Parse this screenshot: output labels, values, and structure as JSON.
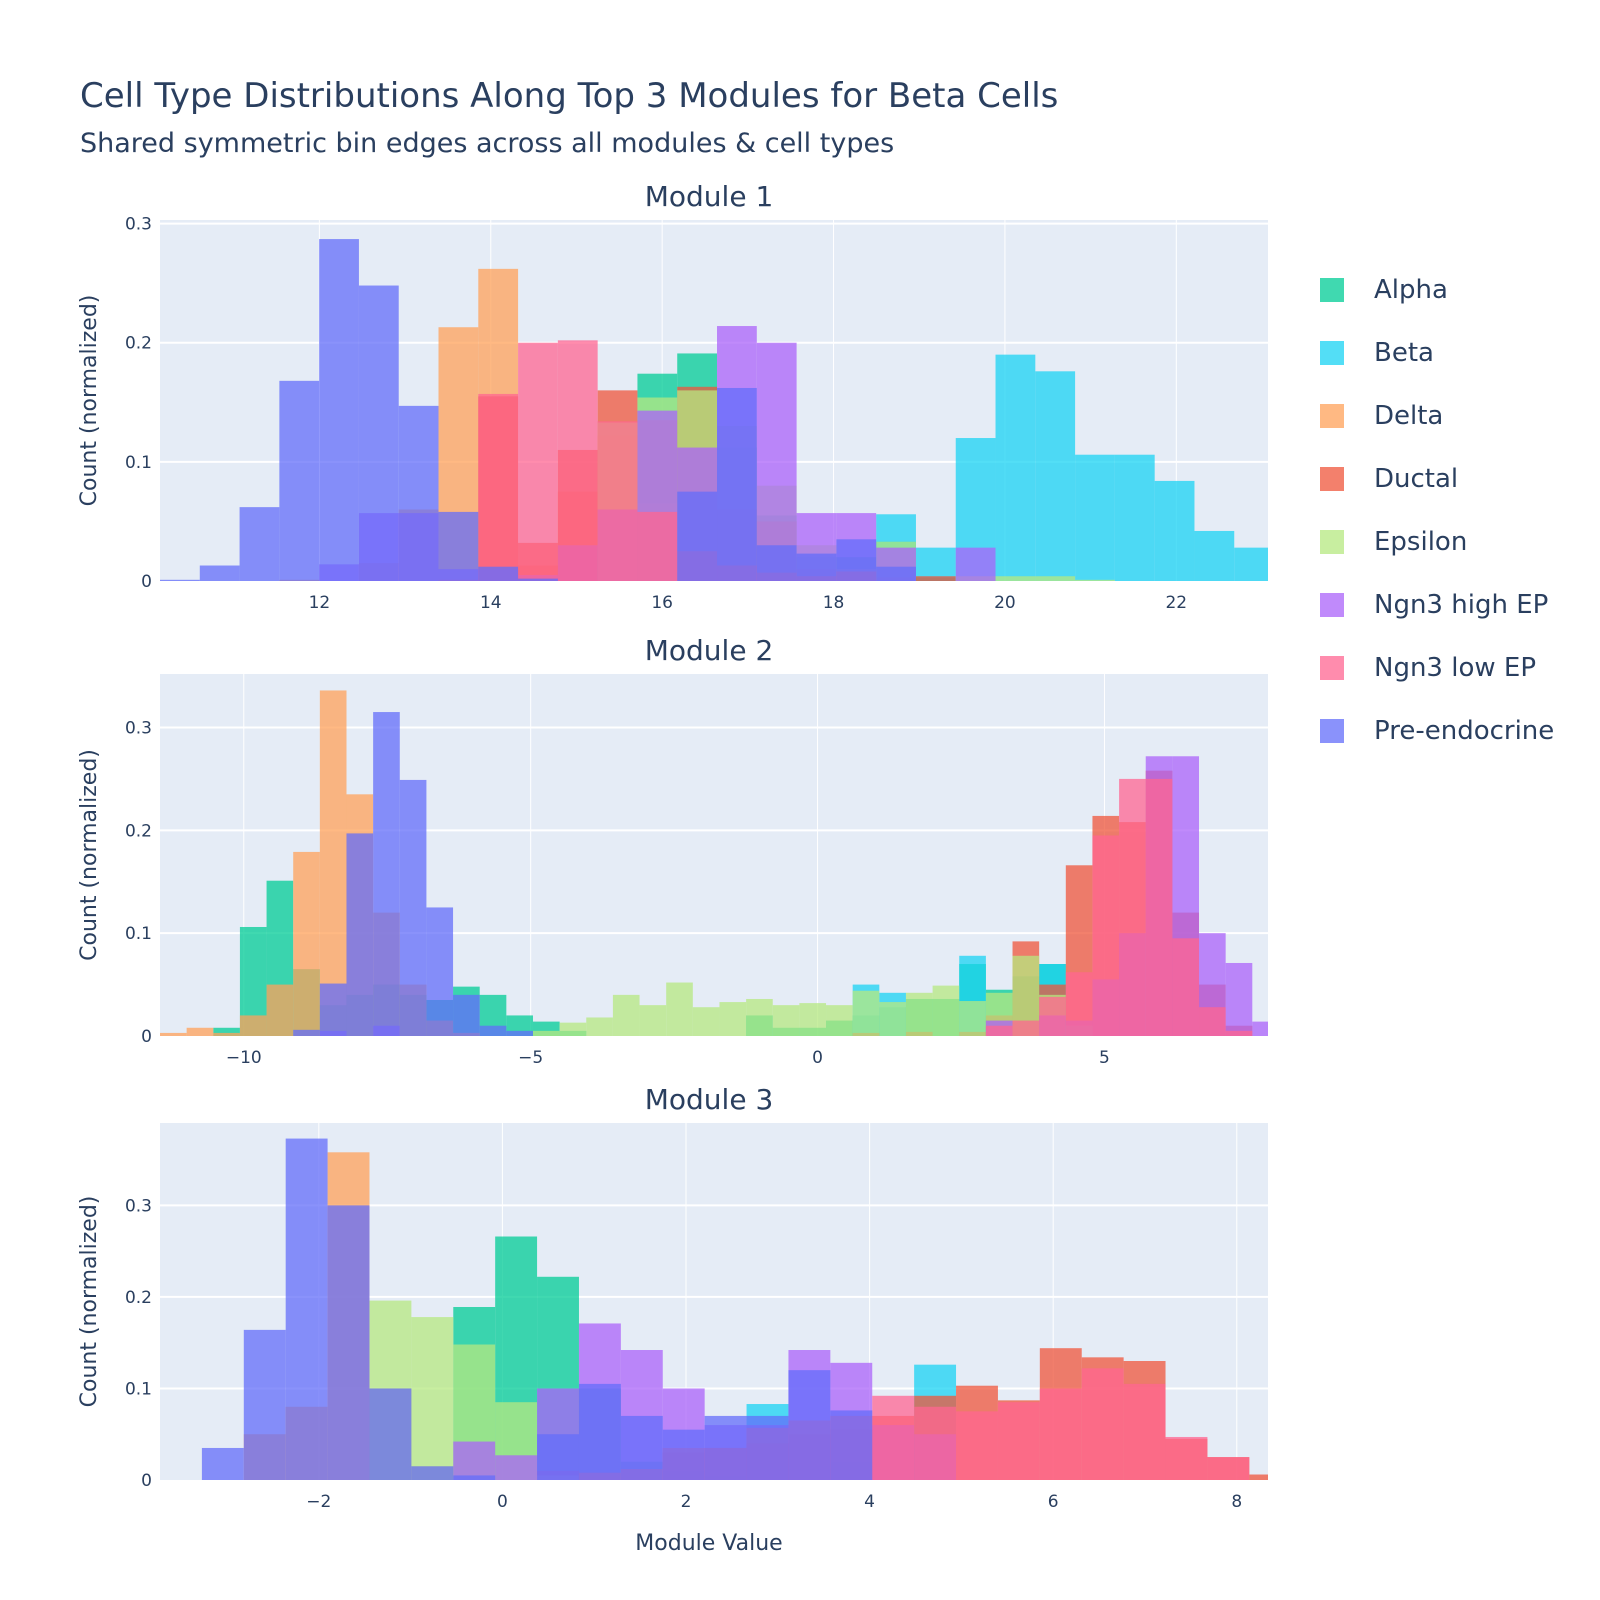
{
  "title": "Cell Type Distributions Along Top 3 Modules for Beta Cells",
  "subtitle": "Shared symmetric bin edges across all modules & cell types",
  "xlabel": "Module Value",
  "ylabel": "Count (normalized)",
  "legend": [
    {
      "name": "Alpha",
      "color": "#00CC96"
    },
    {
      "name": "Beta",
      "color": "#19D3F3"
    },
    {
      "name": "Delta",
      "color": "#FFA15A"
    },
    {
      "name": "Ductal",
      "color": "#EF553B"
    },
    {
      "name": "Epsilon",
      "color": "#B6E880"
    },
    {
      "name": "Ngn3 high EP",
      "color": "#AB63FA"
    },
    {
      "name": "Ngn3 low EP",
      "color": "#FF6692"
    },
    {
      "name": "Pre-endocrine",
      "color": "#636EFA"
    }
  ],
  "chart_data": [
    {
      "type": "bar",
      "title": "Module 1",
      "xlabel": "",
      "ylabel": "Count (normalized)",
      "xlim": [
        10.14,
        23.07
      ],
      "ylim": [
        0,
        0.303
      ],
      "xticks": [
        12,
        14,
        16,
        18,
        20,
        22
      ],
      "xtick_labels": [
        "12",
        "14",
        "16",
        "18",
        "20",
        "22"
      ],
      "yticks": [
        0,
        0.1,
        0.2,
        0.3
      ],
      "ytick_labels": [
        "0",
        "0.1",
        "0.2",
        "0.3"
      ],
      "bin_start": 10.14,
      "bin_width": 0.4643,
      "series": [
        {
          "name": "Alpha",
          "bins": {
            "12": 0.174,
            "13": 0.191,
            "14": 0.112,
            "15": 0.055,
            "16": 0.02,
            "17": 0.02,
            "18": 0.033,
            "19": 0.003
          }
        },
        {
          "name": "Beta",
          "bins": {
            "18": 0.056,
            "19": 0.028,
            "20": 0.12,
            "21": 0.19,
            "22": 0.176,
            "23": 0.106,
            "24": 0.106,
            "25": 0.084,
            "26": 0.042,
            "27": 0.028
          }
        },
        {
          "name": "Delta",
          "bins": {
            "3": 0.001,
            "5": 0.015,
            "6": 0.06,
            "7": 0.213,
            "8": 0.262,
            "9": 0.013,
            "10": 0.075,
            "11": 0.122,
            "12": 0.065
          }
        },
        {
          "name": "Ductal",
          "bins": {
            "8": 0.155,
            "9": 0.032,
            "10": 0.11,
            "11": 0.16,
            "12": 0.135,
            "13": 0.163,
            "14": 0.06,
            "15": 0.05,
            "16": 0.01,
            "17": 0.005,
            "18": 0.003,
            "19": 0.004
          }
        },
        {
          "name": "Epsilon",
          "bins": {
            "11": 0.133,
            "12": 0.154,
            "13": 0.16,
            "14": 0.13,
            "15": 0.08,
            "16": 0.03,
            "17": 0.01,
            "18": 0.033,
            "20": 0.004,
            "21": 0.004,
            "22": 0.004,
            "23": 0.001
          }
        },
        {
          "name": "Ngn3 high EP",
          "bins": {
            "4": 0.014,
            "5": 0.057,
            "6": 0.057,
            "7": 0.01,
            "8": 0.01,
            "9": 0.005,
            "10": 0.03,
            "11": 0.06,
            "12": 0.143,
            "13": 0.112,
            "14": 0.214,
            "15": 0.2,
            "16": 0.057,
            "17": 0.057,
            "18": 0.028,
            "20": 0.028
          }
        },
        {
          "name": "Ngn3 low EP",
          "bins": {
            "7": 0.001,
            "8": 0.157,
            "9": 0.2,
            "10": 0.202,
            "11": 0.134,
            "12": 0.058,
            "13": 0.025,
            "14": 0.013,
            "15": 0.007,
            "16": 0.004,
            "17": 0.008
          }
        },
        {
          "name": "Pre-endocrine",
          "bins": {
            "0": 0.001,
            "1": 0.013,
            "2": 0.062,
            "3": 0.168,
            "4": 0.287,
            "5": 0.248,
            "6": 0.147,
            "7": 0.058,
            "8": 0.012,
            "9": 0.002,
            "13": 0.075,
            "14": 0.162,
            "15": 0.03,
            "16": 0.023,
            "17": 0.035,
            "18": 0.012
          }
        }
      ]
    },
    {
      "type": "bar",
      "title": "Module 2",
      "xlabel": "",
      "ylabel": "Count (normalized)",
      "xlim": [
        -11.46,
        7.85
      ],
      "ylim": [
        0,
        0.352
      ],
      "xticks": [
        -10,
        -5,
        0,
        5
      ],
      "xtick_labels": [
        "−10",
        "−5",
        "0",
        "5"
      ],
      "yticks": [
        0,
        0.1,
        0.2,
        0.3
      ],
      "ytick_labels": [
        "0",
        "0.1",
        "0.2",
        "0.3"
      ],
      "bin_start": -11.46,
      "bin_width": 0.4643,
      "series": [
        {
          "name": "Alpha",
          "bins": {
            "2": 0.008,
            "3": 0.106,
            "4": 0.151,
            "5": 0.065,
            "6": 0.03,
            "7": 0.04,
            "8": 0.05,
            "9": 0.04,
            "10": 0.035,
            "11": 0.048,
            "12": 0.04,
            "13": 0.02,
            "14": 0.014,
            "15": 0.005,
            "22": 0.02,
            "23": 0.008,
            "24": 0.008,
            "25": 0.015,
            "26": 0.02,
            "27": 0.028,
            "28": 0.036,
            "29": 0.036,
            "30": 0.07,
            "31": 0.045,
            "32": 0.058,
            "33": 0.07
          }
        },
        {
          "name": "Beta",
          "bins": {
            "26": 0.05,
            "27": 0.042,
            "30": 0.078,
            "33": 0.07
          }
        },
        {
          "name": "Delta",
          "bins": {
            "0": 0.003,
            "1": 0.008,
            "2": 0.003,
            "3": 0.02,
            "4": 0.05,
            "5": 0.179,
            "6": 0.336,
            "7": 0.235,
            "8": 0.12,
            "9": 0.05,
            "10": 0.015,
            "11": 0.003
          }
        },
        {
          "name": "Ductal",
          "bins": {
            "26": 0.003,
            "28": 0.004,
            "30": 0.004,
            "31": 0.02,
            "32": 0.092,
            "33": 0.05,
            "34": 0.166,
            "35": 0.214,
            "36": 0.208,
            "37": 0.258,
            "38": 0.12,
            "39": 0.05,
            "40": 0.01
          }
        },
        {
          "name": "Epsilon",
          "bins": {
            "14": 0.005,
            "15": 0.013,
            "16": 0.018,
            "17": 0.04,
            "18": 0.03,
            "19": 0.052,
            "20": 0.028,
            "21": 0.033,
            "22": 0.036,
            "23": 0.03,
            "24": 0.032,
            "25": 0.03,
            "26": 0.044,
            "27": 0.033,
            "28": 0.042,
            "29": 0.049,
            "30": 0.034,
            "31": 0.042,
            "32": 0.078,
            "33": 0.04,
            "34": 0.01
          }
        },
        {
          "name": "Ngn3 high EP",
          "bins": {
            "6": 0.005,
            "8": 0.01,
            "31": 0.015,
            "33": 0.02,
            "34": 0.015,
            "35": 0.055,
            "36": 0.1,
            "37": 0.272,
            "38": 0.272,
            "39": 0.1,
            "40": 0.071,
            "41": 0.014
          }
        },
        {
          "name": "Ngn3 low EP",
          "bins": {
            "31": 0.01,
            "32": 0.015,
            "33": 0.038,
            "34": 0.062,
            "35": 0.195,
            "36": 0.25,
            "37": 0.25,
            "38": 0.095,
            "39": 0.028,
            "40": 0.005
          }
        },
        {
          "name": "Pre-endocrine",
          "bins": {
            "5": 0.006,
            "6": 0.051,
            "7": 0.197,
            "8": 0.315,
            "9": 0.249,
            "10": 0.125,
            "11": 0.04,
            "12": 0.01,
            "13": 0.005
          }
        }
      ]
    },
    {
      "type": "bar",
      "title": "Module 3",
      "xlabel": "Module Value",
      "ylabel": "Count (normalized)",
      "xlim": [
        -3.73,
        8.34
      ],
      "ylim": [
        0,
        0.39
      ],
      "xticks": [
        -2,
        0,
        2,
        4,
        6,
        8
      ],
      "xtick_labels": [
        "−2",
        "0",
        "2",
        "4",
        "6",
        "8"
      ],
      "yticks": [
        0,
        0.1,
        0.2,
        0.3
      ],
      "ytick_labels": [
        "0",
        "0.1",
        "0.2",
        "0.3"
      ],
      "bin_start": -3.73,
      "bin_width": 0.4564,
      "series": [
        {
          "name": "Alpha",
          "bins": {
            "7": 0.189,
            "8": 0.266,
            "9": 0.222,
            "10": 0.1,
            "11": 0.02,
            "12": 0.01,
            "13": 0.005
          }
        },
        {
          "name": "Beta",
          "bins": {
            "14": 0.083,
            "16": 0.02,
            "18": 0.126
          }
        },
        {
          "name": "Delta",
          "bins": {
            "2": 0.05,
            "3": 0.08,
            "4": 0.358,
            "5": 0.1,
            "6": 0.015
          }
        },
        {
          "name": "Ductal",
          "bins": {
            "9": 0.01,
            "12": 0.03,
            "13": 0.035,
            "14": 0.04,
            "15": 0.05,
            "16": 0.055,
            "17": 0.07,
            "18": 0.092,
            "19": 0.103,
            "20": 0.087,
            "21": 0.144,
            "22": 0.134,
            "23": 0.13,
            "24": 0.045,
            "25": 0.025,
            "26": 0.006
          }
        },
        {
          "name": "Epsilon",
          "bins": {
            "5": 0.196,
            "6": 0.178,
            "7": 0.148,
            "8": 0.085,
            "9": 0.005
          }
        },
        {
          "name": "Ngn3 high EP",
          "bins": {
            "7": 0.042,
            "8": 0.027,
            "9": 0.1,
            "10": 0.171,
            "11": 0.142,
            "12": 0.1,
            "13": 0.06,
            "14": 0.06,
            "15": 0.142,
            "16": 0.128,
            "17": 0.06,
            "18": 0.05
          }
        },
        {
          "name": "Ngn3 low EP",
          "bins": {
            "10": 0.008,
            "11": 0.012,
            "12": 0.035,
            "13": 0.035,
            "14": 0.057,
            "15": 0.065,
            "16": 0.07,
            "17": 0.092,
            "18": 0.08,
            "19": 0.075,
            "20": 0.085,
            "21": 0.1,
            "22": 0.122,
            "23": 0.105,
            "24": 0.047,
            "25": 0.025
          }
        },
        {
          "name": "Pre-endocrine",
          "bins": {
            "1": 0.035,
            "2": 0.164,
            "3": 0.373,
            "4": 0.3,
            "5": 0.1,
            "6": 0.015,
            "7": 0.005,
            "9": 0.05,
            "10": 0.105,
            "11": 0.07,
            "12": 0.055,
            "13": 0.07,
            "14": 0.07,
            "15": 0.12,
            "16": 0.076
          }
        }
      ]
    }
  ]
}
